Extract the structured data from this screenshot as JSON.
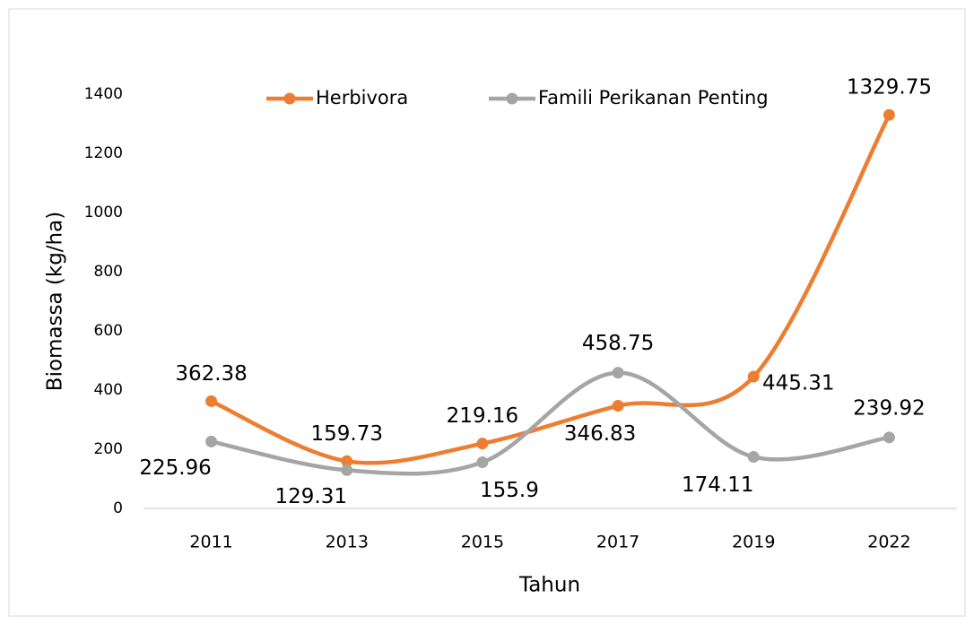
{
  "chart_data": {
    "type": "line",
    "smooth": true,
    "x_label": "Tahun",
    "y_label": "Biomassa (kg/ha)",
    "categories": [
      "2011",
      "2013",
      "2015",
      "2017",
      "2019",
      "2022"
    ],
    "series": [
      {
        "name": "Herbivora",
        "color": "#ed7d31",
        "values": [
          362.38,
          159.73,
          219.16,
          346.83,
          445.31,
          1329.75
        ]
      },
      {
        "name": "Famili Perikanan Penting",
        "color": "#a5a5a5",
        "values": [
          225.96,
          129.31,
          155.9,
          458.75,
          174.11,
          239.92
        ]
      }
    ],
    "ylim": [
      0,
      1400
    ],
    "yticks": [
      0,
      200,
      400,
      600,
      800,
      1000,
      1200,
      1400
    ],
    "grid": false,
    "legend": "top"
  }
}
